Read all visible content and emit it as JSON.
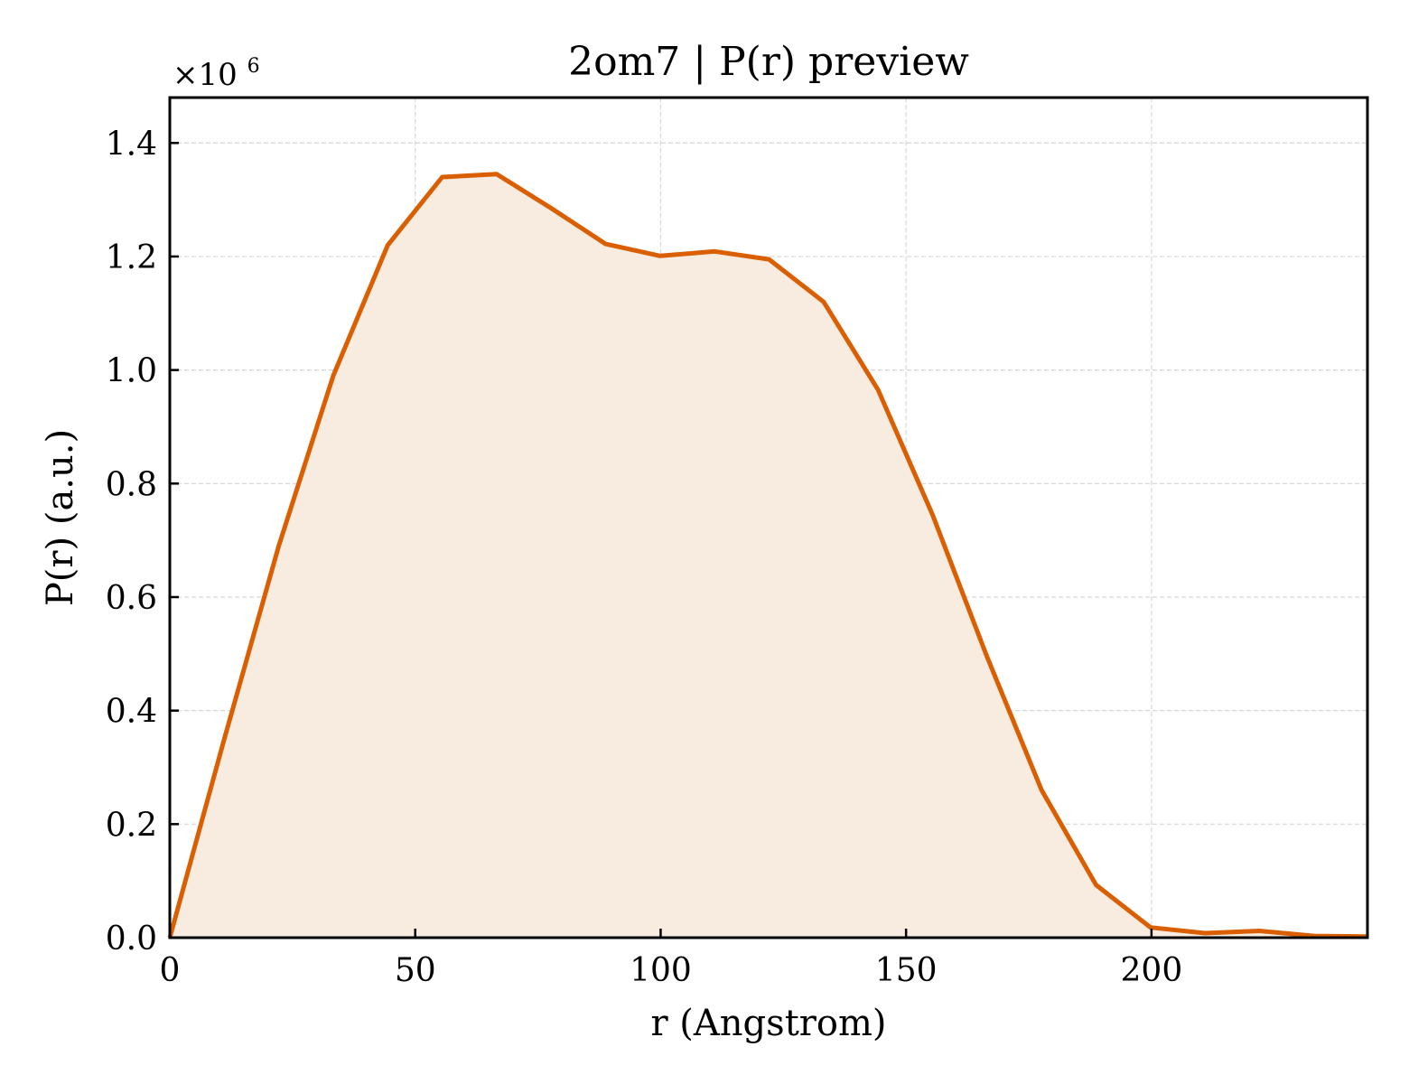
{
  "chart_data": {
    "type": "area",
    "title": "2om7 | P(r) preview",
    "xlabel": "r (Angstrom)",
    "ylabel": "P(r) (a.u.)",
    "y_offset_text": "×10",
    "y_offset_exponent": "6",
    "xlim": [
      0,
      244
    ],
    "ylim": [
      0,
      1.48
    ],
    "xticks": [
      0,
      50,
      100,
      150,
      200
    ],
    "xtick_labels": [
      "0",
      "50",
      "100",
      "150",
      "200"
    ],
    "yticks": [
      0,
      0.2,
      0.4,
      0.6,
      0.8,
      1.0,
      1.2,
      1.4
    ],
    "ytick_labels": [
      "0.0",
      "0.2",
      "0.4",
      "0.6",
      "0.8",
      "1.0",
      "1.2",
      "1.4"
    ],
    "grid": true,
    "legend": "none",
    "color": "#d95f02",
    "fill_color": "#f8ebe0",
    "series": [
      {
        "x": [
          0,
          11.1,
          22.2,
          33.3,
          44.4,
          55.5,
          66.6,
          77.7,
          88.8,
          99.9,
          111.0,
          122.1,
          133.2,
          144.3,
          155.4,
          166.5,
          177.6,
          188.7,
          199.8,
          210.9,
          222.0,
          233.1,
          244.0
        ],
        "values": [
          0.0,
          0.35,
          0.69,
          0.99,
          1.22,
          1.34,
          1.345,
          1.285,
          1.222,
          1.201,
          1.209,
          1.195,
          1.12,
          0.965,
          0.745,
          0.495,
          0.26,
          0.093,
          0.018,
          0.008,
          0.012,
          0.003,
          0.002
        ]
      }
    ]
  }
}
